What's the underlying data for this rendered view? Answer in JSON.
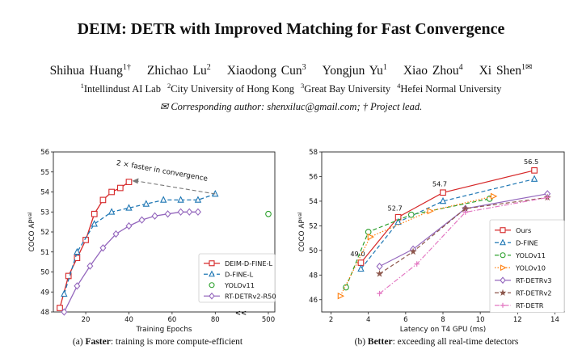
{
  "paper": {
    "title": "DEIM: DETR with Improved Matching for Fast Convergence",
    "authors": [
      {
        "name": "Shihua Huang",
        "sup": "1†"
      },
      {
        "name": "Zhichao Lu",
        "sup": "2"
      },
      {
        "name": "Xiaodong Cun",
        "sup": "3"
      },
      {
        "name": "Yongjun Yu",
        "sup": "1"
      },
      {
        "name": "Xiao Zhou",
        "sup": "4"
      },
      {
        "name": "Xi Shen",
        "sup": "1✉"
      }
    ],
    "affiliations": [
      {
        "sup": "1",
        "name": "Intellindust AI Lab"
      },
      {
        "sup": "2",
        "name": "City University of Hong Kong"
      },
      {
        "sup": "3",
        "name": "Great Bay University"
      },
      {
        "sup": "4",
        "name": "Hefei Normal University"
      }
    ],
    "corresponding": "✉ Corresponding author: shenxiluc@gmail.com; † Project lead.",
    "caption_a_prefix": "(a) ",
    "caption_a_bold": "Faster",
    "caption_a_rest": ": training is more compute-efficient",
    "caption_b_prefix": "(b) ",
    "caption_b_bold": "Better",
    "caption_b_rest": ": exceeding all real-time detectors"
  },
  "chart_data": [
    {
      "type": "line",
      "xlabel": "Training Epochs",
      "ylabel": "COCO AP",
      "ylabel_sup": "val",
      "ylim": [
        48,
        56
      ],
      "xticks": [
        "20",
        "40",
        "60",
        "80",
        "500"
      ],
      "yticks": [
        48,
        49,
        50,
        51,
        52,
        53,
        54,
        55,
        56
      ],
      "annotation": "2 × faster in convergence",
      "break_marker": "<<",
      "legend_position": "lower-right",
      "series": [
        {
          "name": "DEIM-D-FINE-L",
          "color": "#d62728",
          "marker": "square",
          "style": "solid",
          "x": [
            8,
            12,
            16,
            20,
            24,
            28,
            32,
            36,
            40
          ],
          "y": [
            48.2,
            49.8,
            50.7,
            51.6,
            52.9,
            53.6,
            54.0,
            54.2,
            54.5
          ]
        },
        {
          "name": "D-FINE-L",
          "color": "#1f77b4",
          "marker": "triangle",
          "style": "dashed",
          "x": [
            10,
            16,
            24,
            32,
            40,
            48,
            56,
            64,
            72,
            80
          ],
          "y": [
            48.9,
            51.0,
            52.4,
            53.0,
            53.2,
            53.4,
            53.6,
            53.6,
            53.6,
            53.9
          ]
        },
        {
          "name": "YOLOv11",
          "color": "#2ca02c",
          "marker": "circle",
          "style": "none",
          "x": [
            500
          ],
          "y": [
            52.9
          ]
        },
        {
          "name": "RT-DETRv2-R50",
          "color": "#9467bd",
          "marker": "diamond",
          "style": "solid",
          "x": [
            10,
            16,
            22,
            28,
            34,
            40,
            46,
            52,
            58,
            64,
            68,
            72
          ],
          "y": [
            48.0,
            49.3,
            50.3,
            51.2,
            51.9,
            52.3,
            52.6,
            52.8,
            52.9,
            53.0,
            53.0,
            53.0
          ]
        }
      ]
    },
    {
      "type": "line",
      "xlabel": "Latency on T4 GPU (ms)",
      "ylabel": "COCO AP",
      "ylabel_sup": "val",
      "xlim": [
        1.5,
        14.5
      ],
      "ylim": [
        45,
        58
      ],
      "xticks": [
        2,
        4,
        6,
        8,
        10,
        12,
        14
      ],
      "yticks": [
        46,
        48,
        50,
        52,
        54,
        56,
        58
      ],
      "legend_position": "lower-right",
      "series": [
        {
          "name": "Ours",
          "color": "#d62728",
          "marker": "square",
          "style": "solid",
          "x": [
            3.6,
            5.6,
            8.0,
            12.9
          ],
          "y": [
            49.0,
            52.7,
            54.7,
            56.5
          ],
          "labels": [
            "49.0",
            "52.7",
            "54.7",
            "56.5"
          ]
        },
        {
          "name": "D-FINE",
          "color": "#1f77b4",
          "marker": "triangle",
          "style": "dashed",
          "x": [
            3.6,
            5.6,
            8.0,
            12.9
          ],
          "y": [
            48.5,
            52.3,
            54.0,
            55.8
          ]
        },
        {
          "name": "YOLOv11",
          "color": "#2ca02c",
          "marker": "circle",
          "style": "dashed",
          "x": [
            2.8,
            4.0,
            6.3,
            10.5
          ],
          "y": [
            47.0,
            51.5,
            52.9,
            54.2
          ]
        },
        {
          "name": "YOLOv10",
          "color": "#ff7f0e",
          "marker": "triangle-right",
          "style": "dotted",
          "x": [
            2.5,
            4.1,
            7.3,
            10.7
          ],
          "y": [
            46.3,
            51.1,
            53.2,
            54.4
          ]
        },
        {
          "name": "RT-DETRv3",
          "color": "#9467bd",
          "marker": "diamond",
          "style": "solid",
          "x": [
            4.6,
            6.4,
            9.2,
            13.6
          ],
          "y": [
            48.7,
            50.1,
            53.4,
            54.6
          ]
        },
        {
          "name": "RT-DETRv2",
          "color": "#8c564b",
          "marker": "star",
          "style": "dashed",
          "x": [
            4.6,
            6.4,
            9.2,
            13.6
          ],
          "y": [
            48.1,
            49.9,
            53.4,
            54.3
          ]
        },
        {
          "name": "RT-DETR",
          "color": "#e377c2",
          "marker": "plus",
          "style": "dashdot",
          "x": [
            4.6,
            6.6,
            9.2,
            13.6
          ],
          "y": [
            46.5,
            48.9,
            53.1,
            54.3
          ]
        }
      ]
    }
  ]
}
